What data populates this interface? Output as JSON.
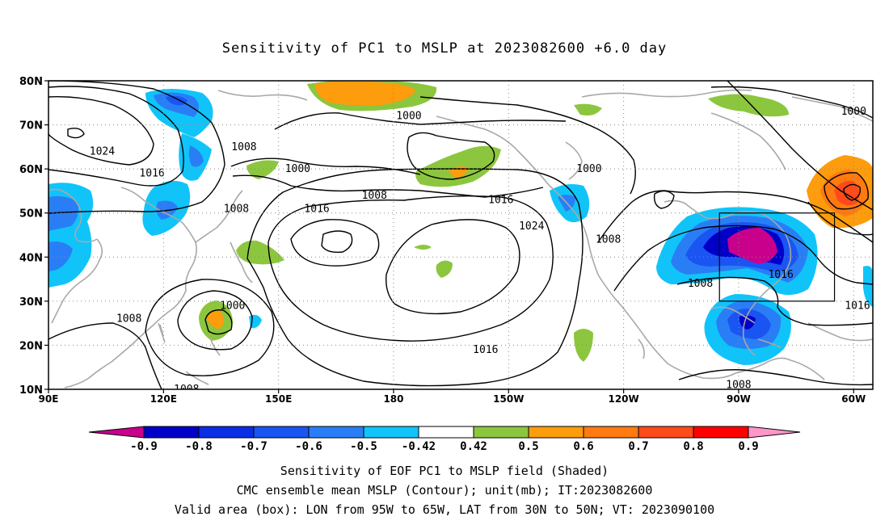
{
  "title": "Sensitivity of PC1 to MSLP at 2023082600 +6.0 day",
  "footer": {
    "line1": "Sensitivity of EOF PC1 to MSLP field (Shaded)",
    "line2": "CMC ensemble mean MSLP (Contour); unit(mb); IT:2023082600",
    "line3": "Valid area (box): LON from 95W to 65W, LAT from 30N to 50N; VT: 2023090100"
  },
  "map": {
    "lon_range": [
      90,
      305
    ],
    "lat_range": [
      10,
      80
    ],
    "lat_ticks": [
      "80N",
      "70N",
      "60N",
      "50N",
      "40N",
      "30N",
      "20N",
      "10N"
    ],
    "lon_ticks": [
      "90E",
      "120E",
      "150E",
      "180",
      "150W",
      "120W",
      "90W",
      "60W"
    ],
    "valid_box": {
      "lon_min": 265,
      "lon_max": 295,
      "lat_min": 30,
      "lat_max": 50
    },
    "contour_labels": [
      {
        "text": "1024",
        "lon": 104,
        "lat": 64
      },
      {
        "text": "1016",
        "lon": 117,
        "lat": 59
      },
      {
        "text": "1008",
        "lon": 141,
        "lat": 65
      },
      {
        "text": "1008",
        "lon": 139,
        "lat": 51
      },
      {
        "text": "1000",
        "lon": 155,
        "lat": 60
      },
      {
        "text": "1000",
        "lon": 184,
        "lat": 72
      },
      {
        "text": "1008",
        "lon": 175,
        "lat": 54
      },
      {
        "text": "1016",
        "lon": 160,
        "lat": 51
      },
      {
        "text": "1016",
        "lon": 208,
        "lat": 53
      },
      {
        "text": "1024",
        "lon": 216,
        "lat": 47
      },
      {
        "text": "1000",
        "lon": 231,
        "lat": 60
      },
      {
        "text": "1008",
        "lon": 236,
        "lat": 44
      },
      {
        "text": "1008",
        "lon": 260,
        "lat": 34
      },
      {
        "text": "1016",
        "lon": 281,
        "lat": 36
      },
      {
        "text": "1016",
        "lon": 301,
        "lat": 29
      },
      {
        "text": "1000",
        "lon": 300,
        "lat": 73
      },
      {
        "text": "1000",
        "lon": 138,
        "lat": 29
      },
      {
        "text": "1008",
        "lon": 111,
        "lat": 26
      },
      {
        "text": "1016",
        "lon": 204,
        "lat": 19
      },
      {
        "text": "1008",
        "lon": 270,
        "lat": 11
      },
      {
        "text": "1008",
        "lon": 126,
        "lat": 10
      }
    ]
  },
  "colorbar": {
    "labels": [
      "-0.9",
      "-0.8",
      "-0.7",
      "-0.6",
      "-0.5",
      "-0.42",
      "0.42",
      "0.5",
      "0.6",
      "0.7",
      "0.8",
      "0.9"
    ],
    "colors": [
      "#0000c8",
      "#0a2ee6",
      "#1a55f2",
      "#2a7ef5",
      "#10c4fa",
      "#ffffff",
      "#8cc63e",
      "#fd9c0c",
      "#ff7a10",
      "#ff4a1a",
      "#ff0000"
    ],
    "left_end_color": "#c8008c",
    "right_end_color": "#ff96c8"
  }
}
